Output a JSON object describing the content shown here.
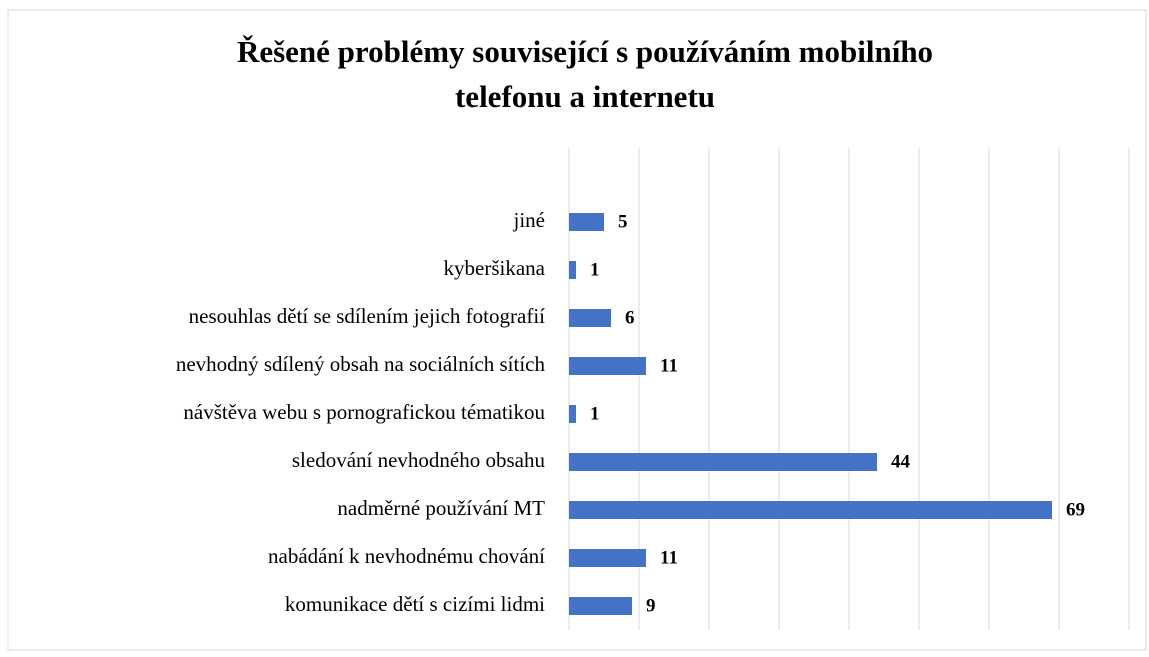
{
  "chart_data": {
    "type": "hbar",
    "title": [
      "Řešené problémy související s používáním mobilního",
      "telefonu a internetu"
    ],
    "categories": [
      "jiné",
      "kyberšikana",
      "nesouhlas dětí se sdílením jejich fotografií",
      "nevhodný sdílený obsah na sociálních sítích",
      "návštěva webu s pornografickou tématikou",
      "sledování nevhodného obsahu",
      "nadměrné používání MT",
      "nabádání k nevhodnému chování",
      "komunikace dětí s cizími lidmi"
    ],
    "values": [
      5,
      1,
      6,
      11,
      1,
      44,
      69,
      11,
      9
    ],
    "color": "#4472c4",
    "xlim": [
      0,
      80
    ],
    "xticks": [
      0,
      10,
      20,
      30,
      40,
      50,
      60,
      70,
      80
    ],
    "grid": true
  }
}
